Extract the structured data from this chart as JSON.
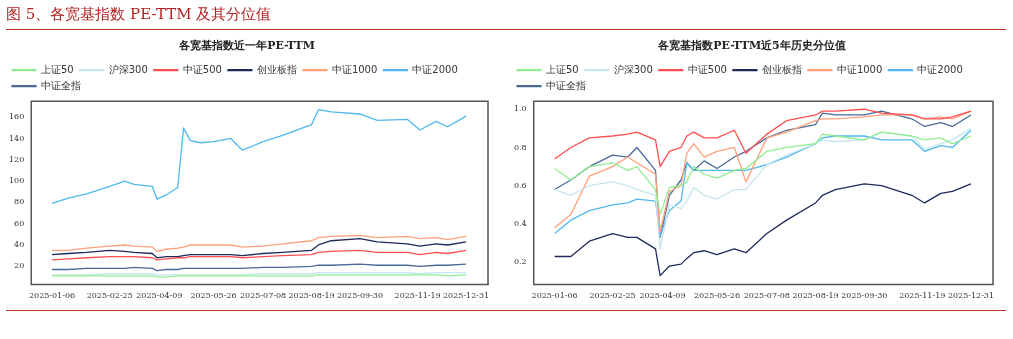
{
  "chart_data": [
    {
      "type": "line",
      "title": "各宽基指数近一年PE-TTM",
      "annotations": [
        "图 5、各宽基指数 PE-TTM 及其分位值"
      ],
      "x": [
        "2025-01-06",
        "2025-01-20",
        "2025-02-05",
        "2025-02-25",
        "2025-03-10",
        "2025-03-18",
        "2025-04-03",
        "2025-04-07",
        "2025-04-15",
        "2025-04-25",
        "2025-04-30",
        "2025-05-06",
        "2025-05-15",
        "2025-05-26",
        "2025-06-10",
        "2025-06-20",
        "2025-07-08",
        "2025-07-25",
        "2025-08-19",
        "2025-08-25",
        "2025-09-05",
        "2025-09-30",
        "2025-10-15",
        "2025-11-10",
        "2025-11-21",
        "2025-12-05",
        "2025-12-15",
        "2025-12-31"
      ],
      "series": [
        {
          "name": "上证50",
          "color": "#90ee90",
          "values": [
            11,
            11,
            11,
            11,
            11,
            11,
            11,
            10,
            10,
            11,
            11,
            11,
            11,
            11,
            11,
            11,
            11,
            11,
            11,
            12,
            12,
            12,
            12,
            12,
            12,
            12,
            11,
            12
          ]
        },
        {
          "name": "沪深300",
          "color": "#c6e6ee",
          "values": [
            12,
            12,
            12,
            13,
            13,
            13,
            13,
            12,
            12,
            12,
            12,
            12,
            12,
            12,
            12,
            12,
            13,
            13,
            13,
            14,
            14,
            14,
            14,
            14,
            13,
            14,
            14,
            14
          ]
        },
        {
          "name": "中证500",
          "color": "#ff5050",
          "values": [
            26,
            27,
            28,
            29,
            29,
            29,
            28,
            26,
            27,
            28,
            28,
            29,
            29,
            29,
            29,
            28,
            29,
            30,
            31,
            33,
            34,
            35,
            33,
            33,
            31,
            33,
            32,
            35
          ]
        },
        {
          "name": "创业板指",
          "color": "#1f2a5a",
          "values": [
            31,
            32,
            33,
            35,
            34,
            33,
            32,
            28,
            29,
            29,
            30,
            31,
            31,
            31,
            31,
            30,
            32,
            33,
            35,
            40,
            44,
            46,
            43,
            41,
            39,
            41,
            40,
            43
          ]
        },
        {
          "name": "中证1000",
          "color": "#ffa07a",
          "values": [
            35,
            35,
            37,
            39,
            40,
            39,
            38,
            34,
            36,
            37,
            38,
            40,
            40,
            40,
            40,
            38,
            39,
            41,
            44,
            47,
            48,
            49,
            47,
            48,
            46,
            47,
            45,
            48
          ]
        },
        {
          "name": "中证2000",
          "color": "#4fb8ec",
          "values": [
            79,
            84,
            88,
            95,
            100,
            97,
            95,
            83,
            87,
            94,
            150,
            138,
            136,
            137,
            140,
            129,
            137,
            143,
            153,
            167,
            165,
            163,
            157,
            158,
            148,
            156,
            151,
            161
          ]
        },
        {
          "name": "中证全指",
          "color": "#4a6a9a",
          "values": [
            17,
            17,
            18,
            18,
            18,
            19,
            18,
            16,
            17,
            17,
            18,
            18,
            18,
            18,
            18,
            18,
            19,
            19,
            20,
            21,
            21,
            22,
            21,
            21,
            20,
            21,
            21,
            22
          ]
        }
      ],
      "xlim": [
        "2024-12-19",
        "2026-01-19"
      ],
      "xticks": [
        "2025-01-06",
        "2025-02-25",
        "2025-04-09",
        "2025-05-26",
        "2025-07-08",
        "2025-08-19",
        "2025-09-30",
        "2025-11-19",
        "2025-12-31"
      ],
      "ylim": [
        3,
        175
      ],
      "yticks": [
        20,
        40,
        60,
        80,
        100,
        120,
        140,
        160
      ],
      "legend": "top left",
      "grid": false
    },
    {
      "type": "line",
      "title": "各宽基指数PE-TTM近5年历史分位值",
      "x": [
        "2025-01-06",
        "2025-01-20",
        "2025-02-05",
        "2025-02-25",
        "2025-03-10",
        "2025-03-18",
        "2025-04-03",
        "2025-04-07",
        "2025-04-15",
        "2025-04-25",
        "2025-04-30",
        "2025-05-06",
        "2025-05-15",
        "2025-05-26",
        "2025-06-10",
        "2025-06-20",
        "2025-07-08",
        "2025-07-25",
        "2025-08-19",
        "2025-08-25",
        "2025-09-05",
        "2025-09-30",
        "2025-10-15",
        "2025-11-10",
        "2025-11-21",
        "2025-12-05",
        "2025-12-15",
        "2025-12-31"
      ],
      "series": [
        {
          "name": "上证50",
          "color": "#90ee90",
          "values": [
            0.69,
            0.63,
            0.7,
            0.72,
            0.68,
            0.7,
            0.58,
            0.45,
            0.59,
            0.6,
            0.62,
            0.7,
            0.66,
            0.64,
            0.68,
            0.69,
            0.78,
            0.8,
            0.82,
            0.87,
            0.86,
            0.84,
            0.88,
            0.86,
            0.84,
            0.85,
            0.82,
            0.86
          ]
        },
        {
          "name": "沪深300",
          "color": "#c6e6ee",
          "values": [
            0.58,
            0.55,
            0.6,
            0.62,
            0.6,
            0.58,
            0.55,
            0.27,
            0.5,
            0.48,
            0.52,
            0.59,
            0.55,
            0.53,
            0.58,
            0.58,
            0.71,
            0.76,
            0.82,
            0.84,
            0.83,
            0.84,
            0.88,
            0.86,
            0.79,
            0.82,
            0.84,
            0.9
          ]
        },
        {
          "name": "中证500",
          "color": "#ff5050",
          "values": [
            0.74,
            0.8,
            0.85,
            0.86,
            0.87,
            0.88,
            0.84,
            0.7,
            0.78,
            0.8,
            0.86,
            0.88,
            0.85,
            0.85,
            0.89,
            0.77,
            0.87,
            0.94,
            0.97,
            0.99,
            0.99,
            1.0,
            0.98,
            0.97,
            0.95,
            0.95,
            0.96,
            0.99
          ]
        },
        {
          "name": "创业板指",
          "color": "#1f2a5a",
          "values": [
            0.23,
            0.23,
            0.31,
            0.35,
            0.33,
            0.33,
            0.27,
            0.13,
            0.18,
            0.19,
            0.22,
            0.25,
            0.26,
            0.24,
            0.27,
            0.25,
            0.35,
            0.42,
            0.51,
            0.55,
            0.58,
            0.61,
            0.6,
            0.55,
            0.51,
            0.56,
            0.57,
            0.61
          ]
        },
        {
          "name": "中证1000",
          "color": "#ffa07a",
          "values": [
            0.38,
            0.45,
            0.65,
            0.7,
            0.75,
            0.72,
            0.66,
            0.36,
            0.57,
            0.6,
            0.77,
            0.82,
            0.75,
            0.78,
            0.8,
            0.62,
            0.85,
            0.88,
            0.94,
            0.95,
            0.95,
            0.96,
            0.97,
            0.97,
            0.95,
            0.96,
            0.95,
            0.99
          ]
        },
        {
          "name": "中证2000",
          "color": "#4fb8ec",
          "values": [
            0.35,
            0.42,
            0.47,
            0.5,
            0.51,
            0.53,
            0.52,
            0.34,
            0.47,
            0.52,
            0.72,
            0.68,
            0.68,
            0.68,
            0.68,
            0.68,
            0.71,
            0.75,
            0.82,
            0.85,
            0.86,
            0.86,
            0.84,
            0.84,
            0.78,
            0.81,
            0.8,
            0.89
          ]
        },
        {
          "name": "中证全指",
          "color": "#4a6a9a",
          "values": [
            0.58,
            0.63,
            0.7,
            0.76,
            0.75,
            0.8,
            0.68,
            0.33,
            0.55,
            0.63,
            0.72,
            0.68,
            0.73,
            0.69,
            0.75,
            0.78,
            0.85,
            0.89,
            0.92,
            0.98,
            0.97,
            0.97,
            0.99,
            0.95,
            0.91,
            0.93,
            0.91,
            0.97
          ]
        }
      ],
      "xlim": [
        "2024-12-19",
        "2026-01-19"
      ],
      "xticks": [
        "2025-01-06",
        "2025-02-25",
        "2025-04-09",
        "2025-05-26",
        "2025-07-08",
        "2025-08-19",
        "2025-09-30",
        "2025-11-19",
        "2025-12-31"
      ],
      "ylim": [
        0.084,
        1.042
      ],
      "yticks": [
        0.2,
        0.4,
        0.6,
        0.8,
        {
          "value": 1.0,
          "label": "1.0"
        }
      ],
      "legend": "top left",
      "grid": false
    }
  ]
}
